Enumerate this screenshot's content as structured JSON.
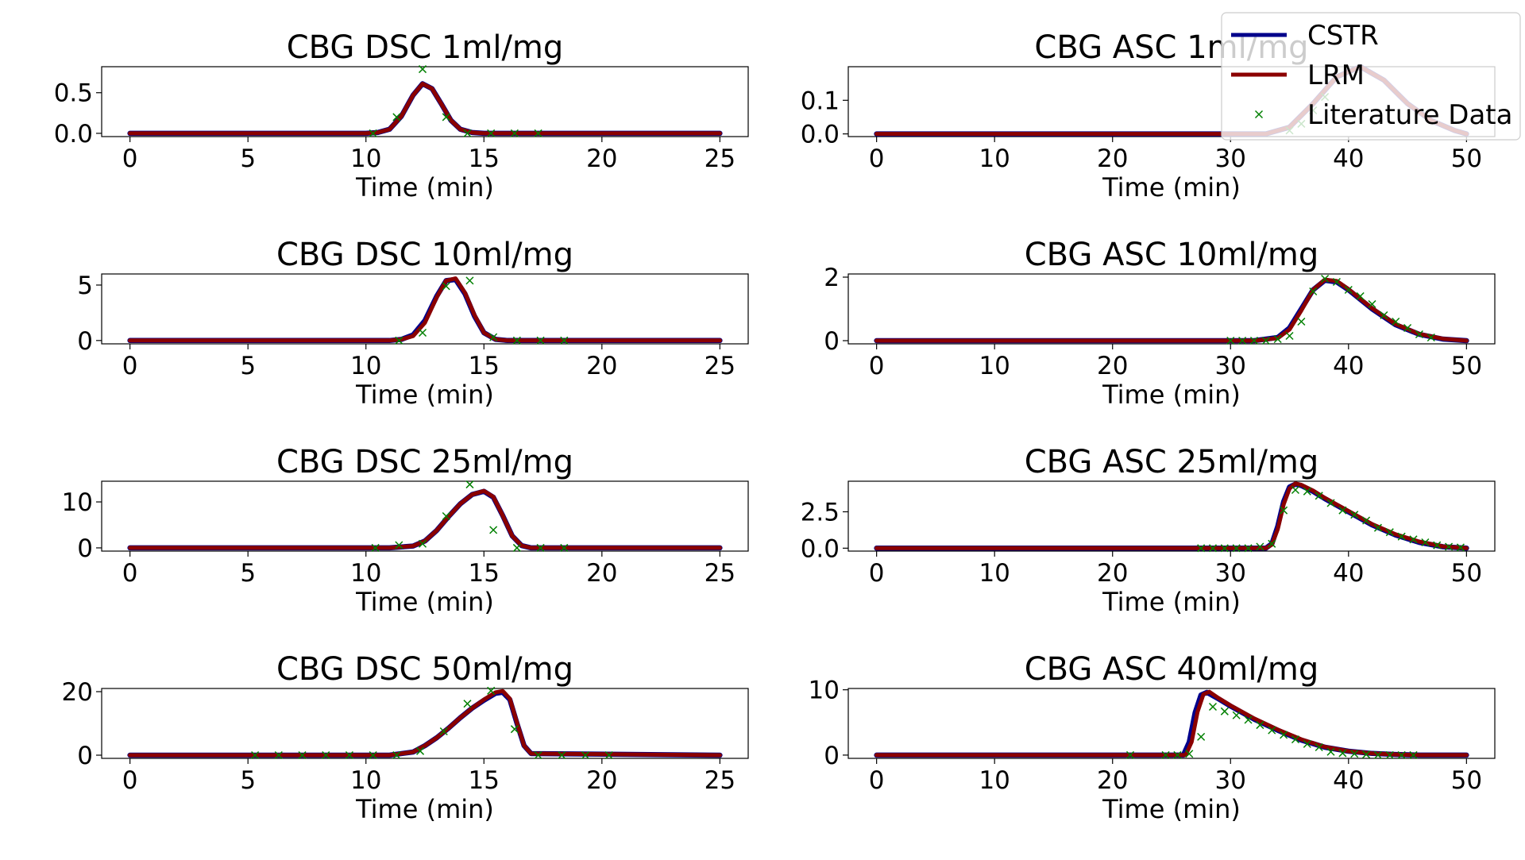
{
  "colors": {
    "cstr": "#00008b",
    "lrm": "#8b0000",
    "literature": "#008000"
  },
  "legend": {
    "placement": "upper-right",
    "entries": [
      "CSTR",
      "LRM",
      "Literature Data"
    ]
  },
  "chart_data": [
    {
      "type": "line",
      "title": "CBG DSC 1ml/mg",
      "xlabel": "Time (min)",
      "ylabel": "",
      "xlim": [
        -1.2,
        26.2
      ],
      "ylim": [
        -0.04,
        0.82
      ],
      "xticks": [
        0,
        5,
        10,
        15,
        20,
        25
      ],
      "yticks": [
        0.0,
        0.5
      ],
      "yticklabels": [
        "0.0",
        "0.5"
      ],
      "series": [
        {
          "name": "CSTR",
          "x": [
            0,
            10,
            10.5,
            11,
            11.5,
            12,
            12.4,
            12.8,
            13.2,
            13.6,
            14,
            14.5,
            15,
            25
          ],
          "y": [
            0,
            0,
            0.01,
            0.05,
            0.21,
            0.47,
            0.61,
            0.55,
            0.36,
            0.16,
            0.05,
            0.01,
            0,
            0
          ]
        },
        {
          "name": "LRM",
          "x": [
            0,
            10,
            10.5,
            11,
            11.5,
            12,
            12.4,
            12.8,
            13.2,
            13.6,
            14,
            14.5,
            15,
            25
          ],
          "y": [
            0,
            0,
            0.01,
            0.05,
            0.21,
            0.47,
            0.61,
            0.55,
            0.36,
            0.16,
            0.05,
            0.01,
            0,
            0
          ]
        },
        {
          "name": "Literature Data",
          "x": [
            10.3,
            11.3,
            12.4,
            13.4,
            14.3,
            15.3,
            16.3,
            17.3
          ],
          "y": [
            0,
            0.2,
            0.79,
            0.2,
            0,
            0,
            0,
            0
          ]
        }
      ]
    },
    {
      "type": "line",
      "title": "CBG ASC 1ml/mg",
      "xlabel": "Time (min)",
      "ylabel": "",
      "xlim": [
        -2.4,
        52.4
      ],
      "ylim": [
        -0.008,
        0.2
      ],
      "xticks": [
        0,
        10,
        20,
        30,
        40,
        50
      ],
      "yticks": [
        0.0,
        0.1
      ],
      "yticklabels": [
        "0.0",
        "0.1"
      ],
      "series": [
        {
          "name": "CSTR",
          "x": [
            0,
            33,
            35,
            37,
            39,
            41,
            43,
            45,
            47,
            49,
            50
          ],
          "y": [
            0,
            0,
            0.02,
            0.09,
            0.17,
            0.2,
            0.16,
            0.09,
            0.04,
            0.01,
            0
          ]
        },
        {
          "name": "LRM",
          "x": [
            0,
            33,
            35,
            37,
            39,
            41,
            43,
            45,
            47,
            49,
            50
          ],
          "y": [
            0,
            0,
            0.02,
            0.09,
            0.17,
            0.2,
            0.16,
            0.09,
            0.04,
            0.01,
            0
          ]
        },
        {
          "name": "Literature Data",
          "x": [
            35,
            36,
            37,
            38
          ],
          "y": [
            0.01,
            0.03,
            0.07,
            0.11
          ]
        }
      ]
    },
    {
      "type": "line",
      "title": "CBG DSC 10ml/mg",
      "xlabel": "Time (min)",
      "ylabel": "",
      "xlim": [
        -1.2,
        26.2
      ],
      "ylim": [
        -0.3,
        6.0
      ],
      "xticks": [
        0,
        5,
        10,
        15,
        20,
        25
      ],
      "yticks": [
        0,
        5
      ],
      "yticklabels": [
        "0",
        "5"
      ],
      "series": [
        {
          "name": "CSTR",
          "x": [
            0,
            11,
            11.5,
            12,
            12.5,
            13,
            13.4,
            13.8,
            14.2,
            14.6,
            15,
            15.5,
            16,
            25
          ],
          "y": [
            0,
            0,
            0.1,
            0.5,
            1.8,
            4.0,
            5.4,
            5.5,
            4.2,
            2.2,
            0.7,
            0.1,
            0,
            0
          ]
        },
        {
          "name": "LRM",
          "x": [
            0,
            11,
            11.5,
            12,
            12.5,
            13,
            13.4,
            13.8,
            14.2,
            14.6,
            15,
            15.5,
            16,
            25
          ],
          "y": [
            0,
            0,
            0.1,
            0.4,
            1.6,
            3.9,
            5.4,
            5.6,
            4.3,
            2.3,
            0.7,
            0.1,
            0,
            0
          ]
        },
        {
          "name": "Literature Data",
          "x": [
            11.4,
            12.4,
            13.4,
            14.4,
            15.4,
            16.4,
            17.4,
            18.4
          ],
          "y": [
            0,
            0.7,
            4.9,
            5.4,
            0.3,
            0,
            0,
            0
          ]
        }
      ]
    },
    {
      "type": "line",
      "title": "CBG ASC 10ml/mg",
      "xlabel": "Time (min)",
      "ylabel": "",
      "xlim": [
        -2.4,
        52.4
      ],
      "ylim": [
        -0.1,
        2.1
      ],
      "xticks": [
        0,
        10,
        20,
        30,
        40,
        50
      ],
      "yticks": [
        0,
        2
      ],
      "yticklabels": [
        "0",
        "2"
      ],
      "series": [
        {
          "name": "CSTR",
          "x": [
            0,
            32,
            34,
            35,
            36,
            37,
            38,
            39,
            40,
            42,
            44,
            46,
            48,
            50
          ],
          "y": [
            0,
            0,
            0.1,
            0.4,
            1.0,
            1.6,
            1.9,
            1.85,
            1.6,
            1.0,
            0.5,
            0.2,
            0.05,
            0
          ]
        },
        {
          "name": "LRM",
          "x": [
            0,
            32,
            34,
            35,
            36,
            37,
            38,
            39,
            40,
            42,
            44,
            46,
            48,
            50
          ],
          "y": [
            0,
            0,
            0.08,
            0.35,
            0.95,
            1.6,
            1.92,
            1.88,
            1.62,
            1.02,
            0.52,
            0.21,
            0.06,
            0
          ]
        },
        {
          "name": "Literature Data",
          "x": [
            30,
            31,
            32,
            33,
            34,
            35,
            36,
            37,
            38,
            39,
            40,
            41,
            42,
            43,
            44,
            45,
            46,
            47
          ],
          "y": [
            0,
            0,
            0,
            0,
            0.05,
            0.15,
            0.6,
            1.55,
            1.95,
            1.85,
            1.6,
            1.4,
            1.15,
            0.8,
            0.6,
            0.4,
            0.2,
            0.1
          ]
        }
      ]
    },
    {
      "type": "line",
      "title": "CBG DSC 25ml/mg",
      "xlabel": "Time (min)",
      "ylabel": "",
      "xlim": [
        -1.2,
        26.2
      ],
      "ylim": [
        -0.7,
        14.5
      ],
      "xticks": [
        0,
        5,
        10,
        15,
        20,
        25
      ],
      "yticks": [
        0,
        10
      ],
      "yticklabels": [
        "0",
        "10"
      ],
      "series": [
        {
          "name": "CSTR",
          "x": [
            0,
            11,
            12,
            12.5,
            13,
            13.5,
            14,
            14.5,
            15,
            15.4,
            15.8,
            16.2,
            16.6,
            17,
            25
          ],
          "y": [
            0,
            0,
            0.4,
            1.5,
            3.8,
            6.8,
            9.6,
            11.6,
            12.3,
            11.0,
            7.0,
            2.6,
            0.5,
            0,
            0
          ]
        },
        {
          "name": "LRM",
          "x": [
            0,
            11,
            12,
            12.5,
            13,
            13.5,
            14,
            14.5,
            15,
            15.4,
            15.8,
            16.2,
            16.6,
            17,
            25
          ],
          "y": [
            0,
            0,
            0.4,
            1.5,
            3.8,
            6.8,
            9.6,
            11.6,
            12.4,
            11.1,
            7.0,
            2.6,
            0.5,
            0,
            0
          ]
        },
        {
          "name": "Literature Data",
          "x": [
            10.4,
            11.4,
            12.4,
            13.4,
            14.4,
            15.4,
            16.4,
            17.4,
            18.4
          ],
          "y": [
            0,
            0.6,
            0.9,
            6.9,
            13.8,
            3.9,
            0,
            0,
            0
          ]
        }
      ]
    },
    {
      "type": "line",
      "title": "CBG ASC 25ml/mg",
      "xlabel": "Time (min)",
      "ylabel": "",
      "xlim": [
        -2.4,
        52.4
      ],
      "ylim": [
        -0.2,
        4.6
      ],
      "xticks": [
        0,
        10,
        20,
        30,
        40,
        50
      ],
      "yticks": [
        0.0,
        2.5
      ],
      "yticklabels": [
        "0.0",
        "2.5"
      ],
      "series": [
        {
          "name": "CSTR",
          "x": [
            0,
            33,
            33.5,
            34,
            34.5,
            35,
            35.5,
            36,
            37,
            38,
            40,
            42,
            44,
            46,
            48,
            50
          ],
          "y": [
            0,
            0,
            0.3,
            1.5,
            3.2,
            4.2,
            4.4,
            4.3,
            3.9,
            3.4,
            2.5,
            1.6,
            0.9,
            0.4,
            0.1,
            0
          ]
        },
        {
          "name": "LRM",
          "x": [
            0,
            33,
            33.5,
            34,
            34.5,
            35,
            35.5,
            36,
            37,
            38,
            40,
            42,
            44,
            46,
            48,
            50
          ],
          "y": [
            0,
            0,
            0.25,
            1.3,
            3.0,
            4.1,
            4.45,
            4.35,
            3.95,
            3.45,
            2.55,
            1.65,
            0.95,
            0.45,
            0.12,
            0
          ]
        },
        {
          "name": "Literature Data",
          "x": [
            27.5,
            28.5,
            29.5,
            30.5,
            31.5,
            32.5,
            33.5,
            34.5,
            35.5,
            36.5,
            37.5,
            38.5,
            39.5,
            40.5,
            41.5,
            42.5,
            43.5,
            44.5,
            45.5,
            46.5,
            47.5,
            48.5,
            49.5
          ],
          "y": [
            0,
            0,
            0,
            0,
            0,
            0.1,
            0.3,
            2.6,
            4.0,
            3.9,
            3.6,
            3.1,
            2.6,
            2.3,
            1.9,
            1.4,
            1.1,
            0.8,
            0.6,
            0.4,
            0.2,
            0.1,
            0.05
          ]
        }
      ]
    },
    {
      "type": "line",
      "title": "CBG DSC 50ml/mg",
      "xlabel": "Time (min)",
      "ylabel": "",
      "xlim": [
        -1.2,
        26.2
      ],
      "ylim": [
        -1.0,
        21.0
      ],
      "xticks": [
        0,
        5,
        10,
        15,
        20,
        25
      ],
      "yticks": [
        0,
        20
      ],
      "yticklabels": [
        "0",
        "20"
      ],
      "series": [
        {
          "name": "CSTR",
          "x": [
            0,
            11,
            12,
            12.5,
            13,
            13.5,
            14,
            14.5,
            15,
            15.5,
            15.8,
            16.1,
            16.4,
            16.7,
            17,
            25
          ],
          "y": [
            0,
            0,
            1,
            3,
            5.5,
            8.5,
            11.8,
            14.8,
            17.3,
            19.5,
            19.8,
            17.5,
            10,
            3,
            0.5,
            0
          ]
        },
        {
          "name": "LRM",
          "x": [
            0,
            11,
            12,
            12.5,
            13,
            13.5,
            14,
            14.5,
            15,
            15.5,
            15.8,
            16.1,
            16.4,
            16.7,
            17,
            25
          ],
          "y": [
            0,
            0,
            1,
            3,
            5.5,
            8.5,
            11.8,
            14.8,
            17.5,
            19.8,
            20.2,
            17.8,
            10.2,
            3,
            0.5,
            0
          ]
        },
        {
          "name": "Literature Data",
          "x": [
            5.3,
            6.3,
            7.3,
            8.3,
            9.3,
            10.3,
            11.3,
            12.3,
            13.3,
            14.3,
            15.3,
            16.3,
            17.3,
            18.3,
            19.3,
            20.3
          ],
          "y": [
            0,
            0,
            0,
            0,
            0,
            0,
            0,
            1.3,
            7.5,
            16.2,
            20.3,
            8.2,
            0,
            0,
            0,
            0
          ]
        }
      ]
    },
    {
      "type": "line",
      "title": "CBG ASC 40ml/mg",
      "xlabel": "Time (min)",
      "ylabel": "",
      "xlim": [
        -2.4,
        52.4
      ],
      "ylim": [
        -0.5,
        10.2
      ],
      "xticks": [
        0,
        10,
        20,
        30,
        40,
        50
      ],
      "yticks": [
        0,
        10
      ],
      "yticklabels": [
        "0",
        "10"
      ],
      "series": [
        {
          "name": "CSTR",
          "x": [
            0,
            26,
            26.5,
            27,
            27.5,
            28,
            29,
            30,
            32,
            34,
            36,
            38,
            40,
            42,
            44,
            46,
            50
          ],
          "y": [
            0,
            0,
            2,
            6.5,
            9.2,
            9.6,
            8.6,
            7.5,
            5.5,
            3.8,
            2.3,
            1.2,
            0.6,
            0.25,
            0.1,
            0,
            0
          ]
        },
        {
          "name": "LRM",
          "x": [
            0,
            26.2,
            26.7,
            27.2,
            27.7,
            28.2,
            29,
            30,
            32,
            34,
            36,
            38,
            40,
            42,
            44,
            46,
            50
          ],
          "y": [
            0,
            0,
            2,
            6.6,
            9.3,
            9.7,
            8.7,
            7.6,
            5.6,
            3.9,
            2.4,
            1.25,
            0.6,
            0.25,
            0.1,
            0,
            0
          ]
        },
        {
          "name": "Literature Data",
          "x": [
            21.5,
            24.5,
            25.5,
            26.5,
            27.5,
            28.5,
            29.5,
            30.5,
            31.5,
            32.5,
            33.5,
            34.5,
            35.5,
            36.5,
            37.5,
            38.5,
            39.5,
            40.5,
            41.5,
            42.5,
            43.5,
            44.5,
            45.5
          ],
          "y": [
            0,
            0,
            0,
            0.2,
            2.8,
            7.4,
            6.7,
            6.1,
            5.4,
            4.6,
            3.8,
            3.1,
            2.4,
            1.7,
            1.2,
            0.5,
            0.3,
            0.2,
            0.1,
            0,
            0,
            0,
            0
          ]
        }
      ]
    }
  ]
}
